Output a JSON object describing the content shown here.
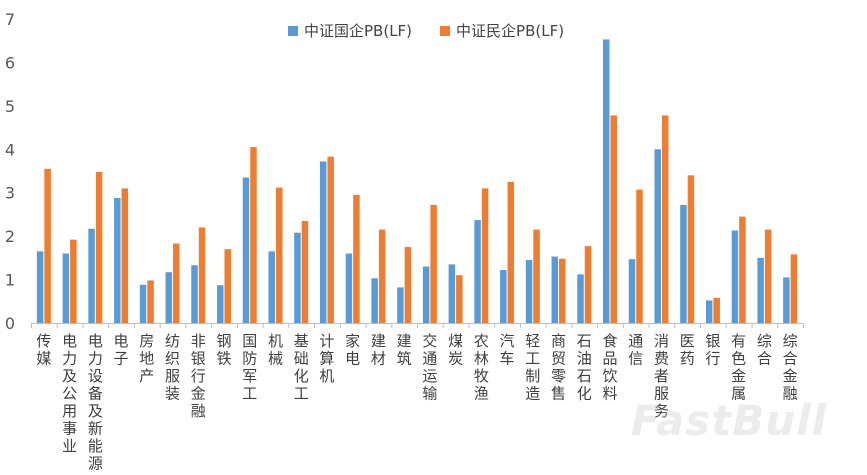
{
  "chart_data": {
    "type": "bar",
    "categories": [
      "传媒",
      "电力及公用事业",
      "电力设备及新能源",
      "电子",
      "房地产",
      "纺织服装",
      "非银行金融",
      "钢铁",
      "国防军工",
      "机械",
      "基础化工",
      "计算机",
      "家电",
      "建材",
      "建筑",
      "交通运输",
      "煤炭",
      "农林牧渔",
      "汽车",
      "轻工制造",
      "商贸零售",
      "石油石化",
      "食品饮料",
      "通信",
      "消费者服务",
      "医药",
      "银行",
      "有色金属",
      "综合",
      "综合金融"
    ],
    "series": [
      {
        "name": "中证国企PB(LF)",
        "color": "#5B9BD5",
        "values": [
          1.65,
          1.6,
          2.17,
          2.88,
          0.88,
          1.17,
          1.33,
          0.87,
          3.35,
          1.65,
          2.08,
          3.72,
          1.6,
          1.03,
          0.82,
          1.3,
          1.35,
          2.37,
          1.22,
          1.45,
          1.53,
          1.12,
          6.53,
          1.47,
          4.0,
          2.72,
          0.52,
          2.13,
          1.5,
          1.05
        ]
      },
      {
        "name": "中证民企PB(LF)",
        "color": "#ED7D31",
        "values": [
          3.55,
          1.92,
          3.48,
          3.1,
          0.98,
          1.83,
          2.2,
          1.7,
          4.05,
          3.12,
          2.35,
          3.83,
          2.95,
          2.15,
          1.75,
          2.72,
          1.1,
          3.1,
          3.25,
          2.15,
          1.48,
          1.77,
          4.78,
          3.07,
          4.78,
          3.4,
          0.58,
          2.45,
          2.15,
          1.58
        ]
      }
    ],
    "yticks": [
      "0",
      "1",
      "2",
      "3",
      "4",
      "5",
      "6",
      "7"
    ],
    "ylim": [
      0,
      7
    ],
    "grid": false,
    "legend_position": "top"
  },
  "watermark": "FastBull"
}
